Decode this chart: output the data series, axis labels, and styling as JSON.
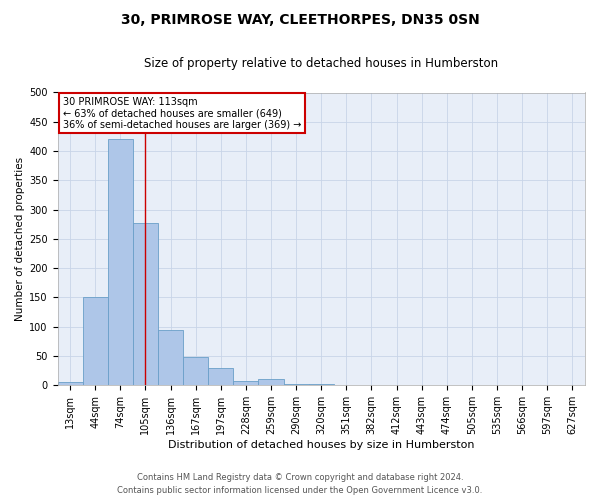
{
  "title": "30, PRIMROSE WAY, CLEETHORPES, DN35 0SN",
  "subtitle": "Size of property relative to detached houses in Humberston",
  "xlabel": "Distribution of detached houses by size in Humberston",
  "ylabel": "Number of detached properties",
  "categories": [
    "13sqm",
    "44sqm",
    "74sqm",
    "105sqm",
    "136sqm",
    "167sqm",
    "197sqm",
    "228sqm",
    "259sqm",
    "290sqm",
    "320sqm",
    "351sqm",
    "382sqm",
    "412sqm",
    "443sqm",
    "474sqm",
    "505sqm",
    "535sqm",
    "566sqm",
    "597sqm",
    "627sqm"
  ],
  "values": [
    5,
    150,
    420,
    278,
    95,
    48,
    29,
    7,
    10,
    3,
    2,
    0,
    0,
    0,
    0,
    0,
    0,
    0,
    0,
    0,
    0
  ],
  "bar_color": "#aec6e8",
  "bar_edge_color": "#6a9fc8",
  "property_line_x": 3.0,
  "annotation_text": "30 PRIMROSE WAY: 113sqm\n← 63% of detached houses are smaller (649)\n36% of semi-detached houses are larger (369) →",
  "annotation_box_color": "#ffffff",
  "annotation_box_edge_color": "#cc0000",
  "annotation_text_color": "#000000",
  "property_line_color": "#cc0000",
  "ylim": [
    0,
    500
  ],
  "yticks": [
    0,
    50,
    100,
    150,
    200,
    250,
    300,
    350,
    400,
    450,
    500
  ],
  "grid_color": "#c8d4e8",
  "bg_color": "#e8eef8",
  "footer_line1": "Contains HM Land Registry data © Crown copyright and database right 2024.",
  "footer_line2": "Contains public sector information licensed under the Open Government Licence v3.0.",
  "title_fontsize": 10,
  "subtitle_fontsize": 8.5,
  "xlabel_fontsize": 8,
  "ylabel_fontsize": 7.5,
  "tick_fontsize": 7,
  "footer_fontsize": 6,
  "annotation_fontsize": 7
}
